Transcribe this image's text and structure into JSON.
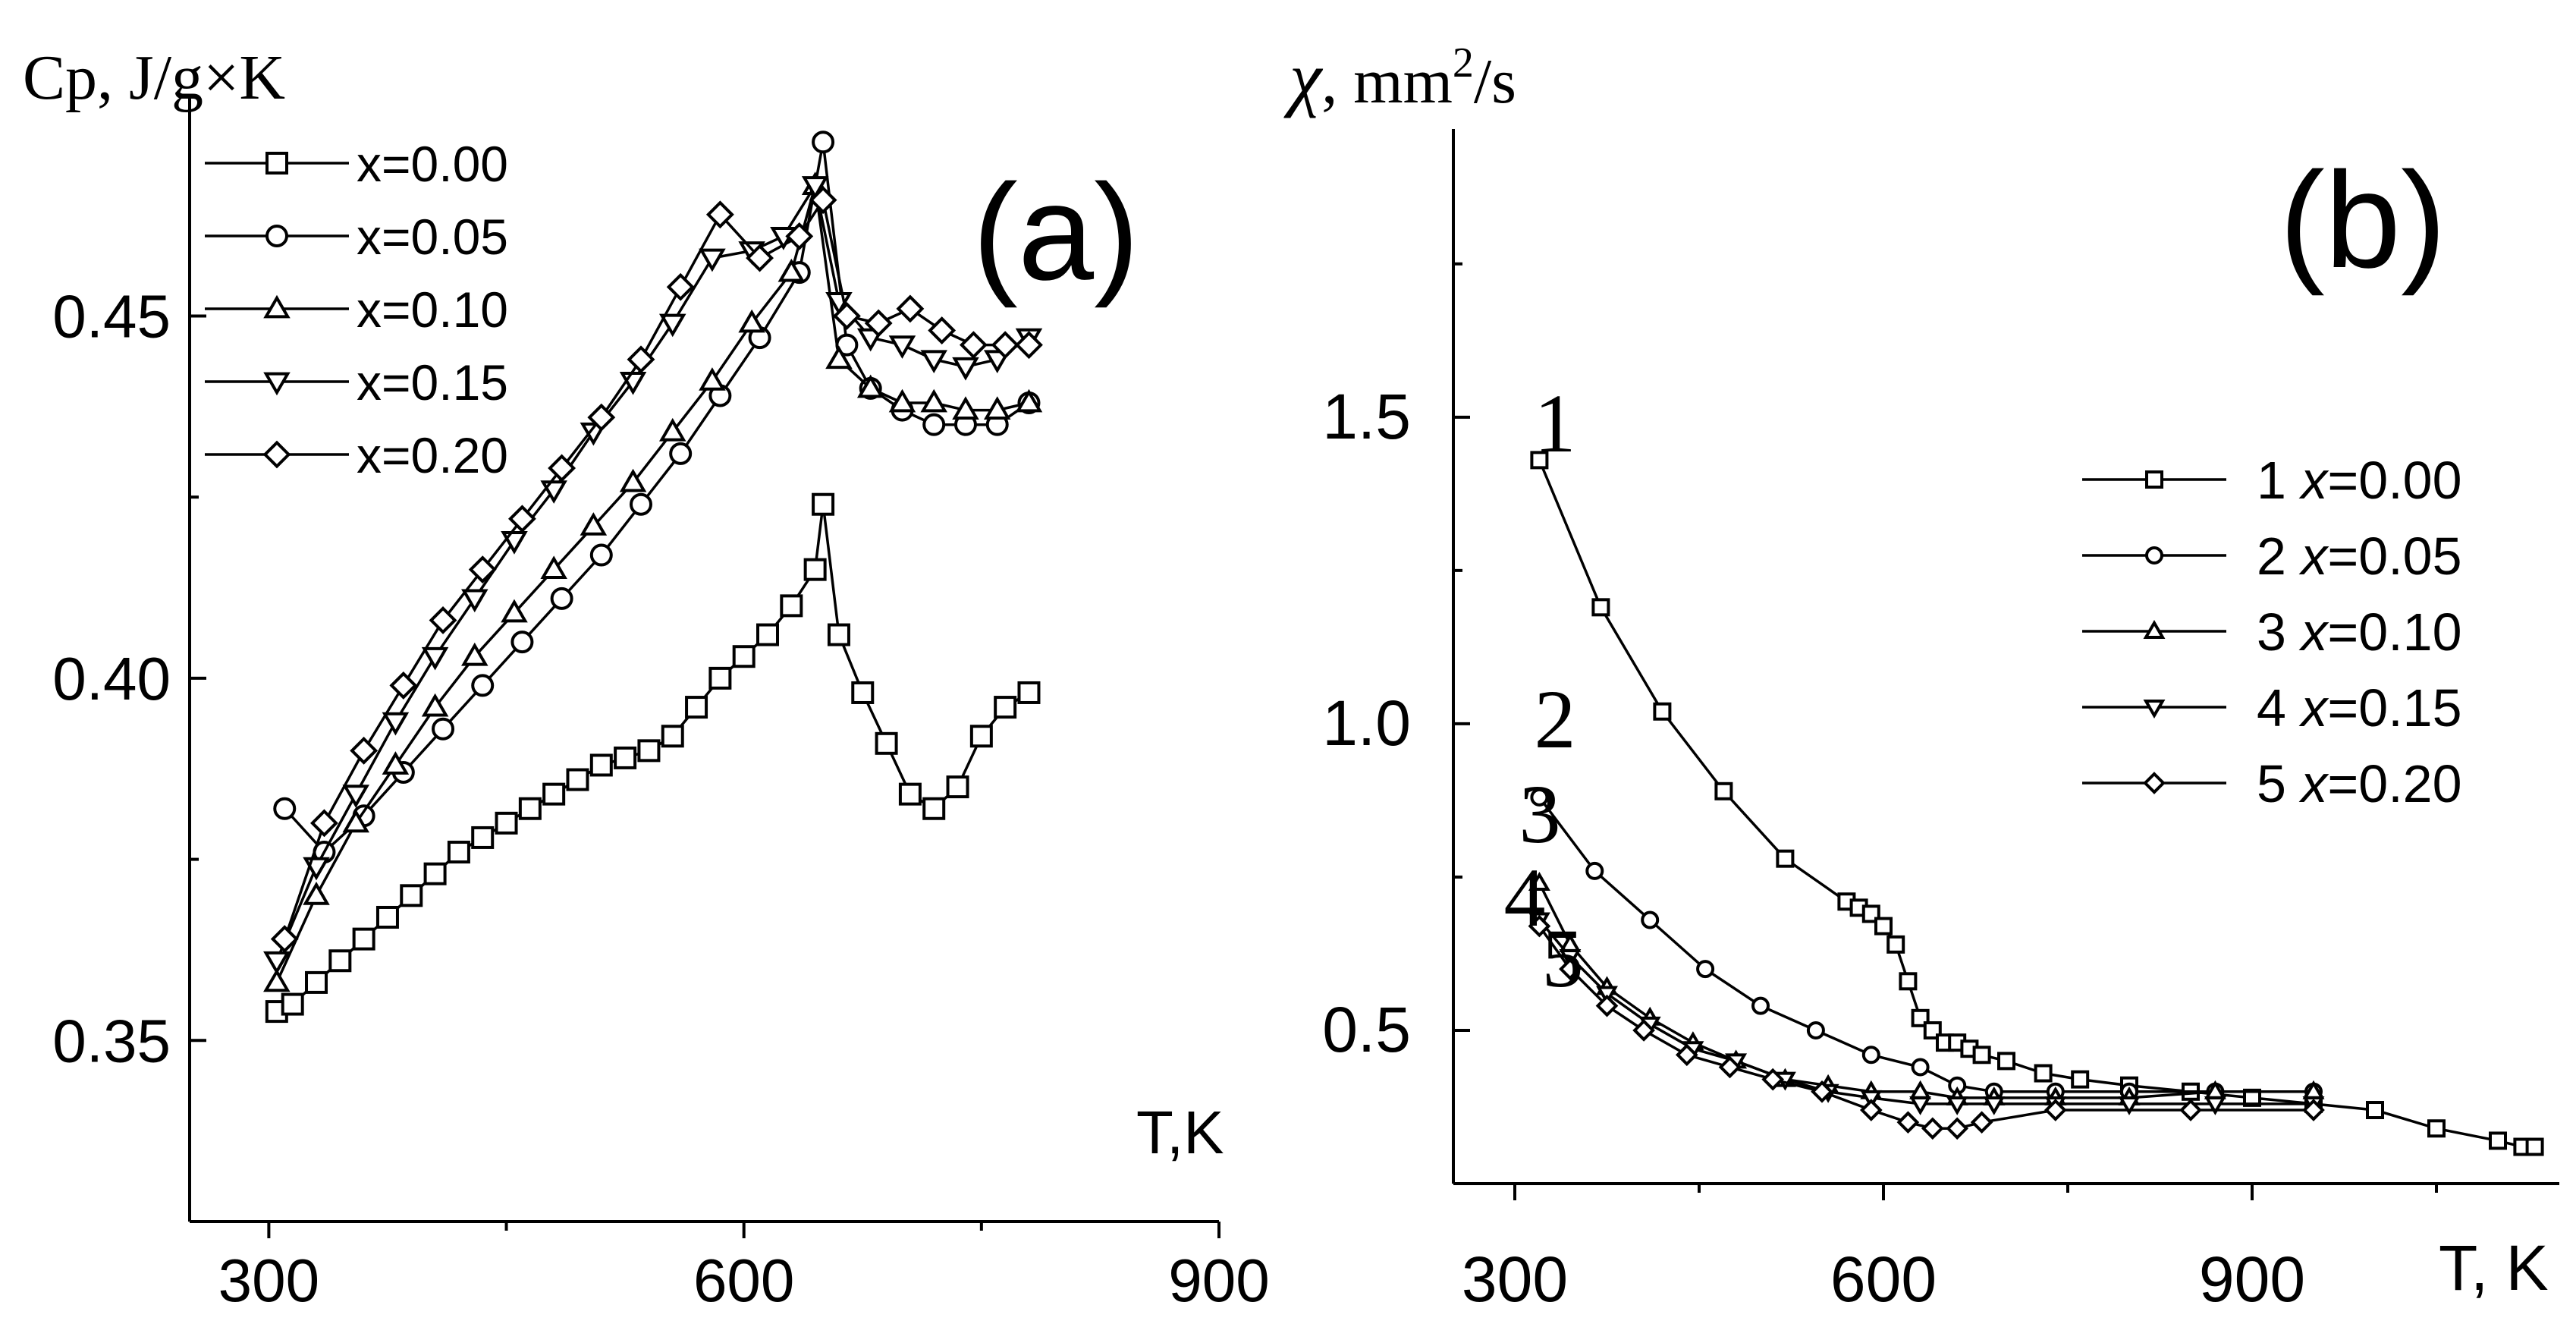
{
  "chart_data": [
    {
      "type": "line",
      "panel_label": "(a)",
      "title": "",
      "xlabel": "T,K",
      "ylabel": "Cp, J/g×K",
      "xlim": [
        250,
        900
      ],
      "ylim": [
        0.325,
        0.48
      ],
      "xticks": [
        "300",
        "600",
        "900"
      ],
      "yticks": [
        "0.35",
        "0.40",
        "0.45"
      ],
      "xtick_values": [
        300,
        600,
        900
      ],
      "ytick_values": [
        0.35,
        0.4,
        0.45
      ],
      "legend_position": "top-left",
      "series": [
        {
          "name": "x=0.00",
          "marker": "square",
          "x": [
            305,
            315,
            330,
            345,
            360,
            375,
            390,
            405,
            420,
            435,
            450,
            465,
            480,
            495,
            510,
            525,
            540,
            555,
            570,
            585,
            600,
            615,
            630,
            645,
            650,
            660,
            675,
            690,
            705,
            720,
            735,
            750,
            765,
            780
          ],
          "y": [
            0.354,
            0.355,
            0.358,
            0.361,
            0.364,
            0.367,
            0.37,
            0.373,
            0.376,
            0.378,
            0.38,
            0.382,
            0.384,
            0.386,
            0.388,
            0.389,
            0.39,
            0.392,
            0.396,
            0.4,
            0.403,
            0.406,
            0.41,
            0.415,
            0.424,
            0.406,
            0.398,
            0.391,
            0.384,
            0.382,
            0.385,
            0.392,
            0.396,
            0.398
          ]
        },
        {
          "name": "x=0.05",
          "marker": "circle",
          "x": [
            310,
            335,
            360,
            385,
            410,
            435,
            460,
            485,
            510,
            535,
            560,
            585,
            610,
            635,
            650,
            665,
            680,
            700,
            720,
            740,
            760,
            780
          ],
          "y": [
            0.382,
            0.376,
            0.381,
            0.387,
            0.393,
            0.399,
            0.405,
            0.411,
            0.417,
            0.424,
            0.431,
            0.439,
            0.447,
            0.456,
            0.474,
            0.446,
            0.44,
            0.437,
            0.435,
            0.435,
            0.435,
            0.438
          ]
        },
        {
          "name": "x=0.10",
          "marker": "triangle-up",
          "x": [
            305,
            330,
            355,
            380,
            405,
            430,
            455,
            480,
            505,
            530,
            555,
            580,
            605,
            630,
            645,
            660,
            680,
            700,
            720,
            740,
            760,
            780
          ],
          "y": [
            0.358,
            0.37,
            0.38,
            0.388,
            0.396,
            0.403,
            0.409,
            0.415,
            0.421,
            0.427,
            0.434,
            0.441,
            0.449,
            0.456,
            0.468,
            0.444,
            0.44,
            0.438,
            0.438,
            0.437,
            0.437,
            0.438
          ]
        },
        {
          "name": "x=0.15",
          "marker": "triangle-down",
          "x": [
            305,
            330,
            355,
            380,
            405,
            430,
            455,
            480,
            505,
            530,
            555,
            580,
            605,
            625,
            645,
            660,
            680,
            700,
            720,
            740,
            760,
            780
          ],
          "y": [
            0.361,
            0.374,
            0.384,
            0.394,
            0.403,
            0.411,
            0.419,
            0.426,
            0.434,
            0.441,
            0.449,
            0.458,
            0.459,
            0.461,
            0.468,
            0.452,
            0.447,
            0.446,
            0.444,
            0.443,
            0.444,
            0.447
          ]
        },
        {
          "name": "x=0.20",
          "marker": "diamond",
          "x": [
            310,
            335,
            360,
            385,
            410,
            435,
            460,
            485,
            510,
            535,
            560,
            585,
            610,
            635,
            650,
            665,
            685,
            705,
            725,
            745,
            765,
            780
          ],
          "y": [
            0.364,
            0.38,
            0.39,
            0.399,
            0.408,
            0.415,
            0.422,
            0.429,
            0.436,
            0.444,
            0.454,
            0.464,
            0.458,
            0.461,
            0.466,
            0.45,
            0.449,
            0.451,
            0.448,
            0.446,
            0.446,
            0.446
          ]
        }
      ]
    },
    {
      "type": "line",
      "panel_label": "(b)",
      "title": "",
      "xlabel": "T, K",
      "ylabel": "χ , mm²/s",
      "ylabel_symbol": "χ",
      "ylabel_unit": ", mm",
      "ylabel_sup": "2",
      "ylabel_tail": "/s",
      "xlim": [
        250,
        1150
      ],
      "ylim": [
        0.25,
        1.97
      ],
      "xticks": [
        "300",
        "600",
        "900"
      ],
      "yticks": [
        "0.5",
        "1.0",
        "1.5"
      ],
      "xtick_values": [
        300,
        600,
        900
      ],
      "ytick_values": [
        0.5,
        1.0,
        1.5
      ],
      "legend_position": "right",
      "curve_labels": [
        "1",
        "2",
        "3",
        "4",
        "5"
      ],
      "series": [
        {
          "name": "x=0.00",
          "legend_number": "1",
          "marker": "square",
          "x": [
            320,
            370,
            420,
            470,
            520,
            570,
            580,
            590,
            600,
            610,
            620,
            630,
            640,
            650,
            660,
            670,
            680,
            700,
            730,
            760,
            800,
            850,
            900,
            950,
            1000,
            1050,
            1100,
            1120,
            1130
          ],
          "y": [
            1.43,
            1.19,
            1.02,
            0.89,
            0.78,
            0.71,
            0.7,
            0.69,
            0.67,
            0.64,
            0.58,
            0.52,
            0.5,
            0.48,
            0.48,
            0.47,
            0.46,
            0.45,
            0.43,
            0.42,
            0.41,
            0.4,
            0.39,
            0.38,
            0.37,
            0.34,
            0.32,
            0.31,
            0.31
          ]
        },
        {
          "name": "x=0.05",
          "legend_number": "2",
          "marker": "circle",
          "x": [
            320,
            365,
            410,
            455,
            500,
            545,
            590,
            630,
            660,
            690,
            740,
            800,
            870,
            950
          ],
          "y": [
            0.88,
            0.76,
            0.68,
            0.6,
            0.54,
            0.5,
            0.46,
            0.44,
            0.41,
            0.4,
            0.4,
            0.4,
            0.4,
            0.4
          ]
        },
        {
          "name": "x=0.10",
          "legend_number": "3",
          "marker": "triangle-up",
          "x": [
            320,
            345,
            375,
            410,
            445,
            480,
            520,
            555,
            590,
            630,
            660,
            690,
            740,
            800,
            870,
            950
          ],
          "y": [
            0.74,
            0.64,
            0.57,
            0.52,
            0.48,
            0.45,
            0.42,
            0.41,
            0.4,
            0.4,
            0.39,
            0.39,
            0.39,
            0.39,
            0.4,
            0.4
          ]
        },
        {
          "name": "x=0.15",
          "legend_number": "4",
          "marker": "triangle-down",
          "x": [
            320,
            345,
            375,
            410,
            445,
            480,
            520,
            555,
            590,
            630,
            660,
            690,
            740,
            800,
            870,
            950
          ],
          "y": [
            0.68,
            0.62,
            0.56,
            0.51,
            0.47,
            0.45,
            0.42,
            0.4,
            0.39,
            0.38,
            0.38,
            0.38,
            0.38,
            0.38,
            0.38,
            0.38
          ]
        },
        {
          "name": "x=0.20",
          "legend_number": "5",
          "marker": "diamond",
          "x": [
            320,
            345,
            375,
            405,
            440,
            475,
            510,
            550,
            590,
            620,
            640,
            660,
            680,
            740,
            850,
            950
          ],
          "y": [
            0.67,
            0.6,
            0.54,
            0.5,
            0.46,
            0.44,
            0.42,
            0.4,
            0.37,
            0.35,
            0.34,
            0.34,
            0.35,
            0.37,
            0.37,
            0.37
          ]
        }
      ]
    }
  ]
}
